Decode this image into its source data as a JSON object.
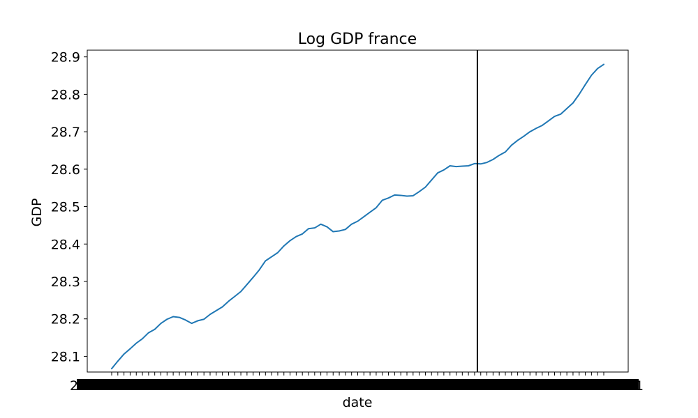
{
  "chart_data": {
    "type": "line",
    "title": "Log GDP france",
    "xlabel": "date",
    "ylabel": "GDP",
    "ylim": [
      28.058,
      28.918
    ],
    "yticks": [
      28.1,
      28.2,
      28.3,
      28.4,
      28.5,
      28.6,
      28.7,
      28.8,
      28.9
    ],
    "ytick_labels": [
      "28.1",
      "28.2",
      "28.3",
      "28.4",
      "28.5",
      "28.6",
      "28.7",
      "28.8",
      "28.9"
    ],
    "xtick_left_label": "2",
    "xtick_right_label": "1",
    "grid": false,
    "legend": "none",
    "vertical_line_at_index": 59,
    "colors": {
      "series": "#1f77b4",
      "vline": "#000000"
    },
    "series": [
      {
        "values": [
          28.067,
          28.087,
          28.106,
          28.12,
          28.135,
          28.147,
          28.163,
          28.172,
          28.188,
          28.199,
          28.206,
          28.204,
          28.197,
          28.188,
          28.195,
          28.199,
          28.212,
          28.222,
          28.232,
          28.247,
          28.26,
          28.273,
          28.292,
          28.311,
          28.331,
          28.355,
          28.366,
          28.377,
          28.395,
          28.409,
          28.42,
          28.427,
          28.441,
          28.443,
          28.453,
          28.446,
          28.433,
          28.435,
          28.439,
          28.453,
          28.461,
          28.473,
          28.485,
          28.497,
          28.517,
          28.523,
          28.531,
          28.53,
          28.528,
          28.529,
          28.54,
          28.552,
          28.571,
          28.59,
          28.598,
          28.609,
          28.607,
          28.608,
          28.609,
          28.615,
          28.614,
          28.618,
          28.626,
          28.637,
          28.646,
          28.664,
          28.677,
          28.688,
          28.7,
          28.709,
          28.717,
          28.729,
          28.741,
          28.747,
          28.762,
          28.777,
          28.8,
          28.826,
          28.851,
          28.869,
          28.88
        ]
      }
    ]
  }
}
